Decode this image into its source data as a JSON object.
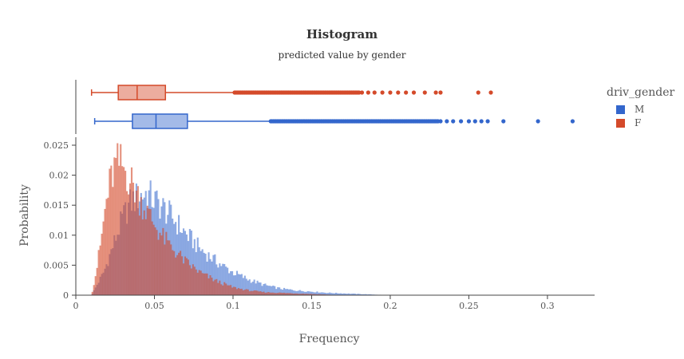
{
  "header": {
    "title": "Histogram",
    "subtitle": "predicted value by gender"
  },
  "legend": {
    "title": "driv_gender",
    "items": [
      {
        "label": "M",
        "color": "#3366cc"
      },
      {
        "label": "F",
        "color": "#d44a2a"
      }
    ]
  },
  "chart_data": [
    {
      "type": "boxplot",
      "orientation": "horizontal",
      "axis": "x",
      "series": [
        {
          "name": "F",
          "color": "#d44a2a",
          "min": 0.01,
          "q1": 0.027,
          "median": 0.039,
          "q3": 0.057,
          "upper_fence": 0.101,
          "outliers_dense_range": [
            0.101,
            0.18
          ],
          "outliers": [
            0.182,
            0.186,
            0.19,
            0.195,
            0.2,
            0.205,
            0.21,
            0.215,
            0.222,
            0.229,
            0.232,
            0.256,
            0.264
          ]
        },
        {
          "name": "M",
          "color": "#3366cc",
          "min": 0.012,
          "q1": 0.036,
          "median": 0.051,
          "q3": 0.071,
          "upper_fence": 0.124,
          "outliers_dense_range": [
            0.124,
            0.23
          ],
          "outliers": [
            0.232,
            0.236,
            0.24,
            0.245,
            0.25,
            0.254,
            0.258,
            0.262,
            0.272,
            0.294,
            0.316
          ]
        }
      ]
    },
    {
      "type": "histogram",
      "xlabel": "Frequency",
      "ylabel": "Probability",
      "xlim": [
        0,
        0.33
      ],
      "ylim": [
        0,
        0.025
      ],
      "xticks": [
        0,
        0.05,
        0.1,
        0.15,
        0.2,
        0.25,
        0.3
      ],
      "xtick_labels": [
        "0",
        "0.05",
        "0.1",
        "0.15",
        "0.2",
        "0.25",
        "0.3"
      ],
      "yticks": [
        0,
        0.005,
        0.01,
        0.015,
        0.02,
        0.025
      ],
      "ytick_labels": [
        "0",
        "0.005",
        "0.01",
        "0.015",
        "0.02",
        "0.025"
      ],
      "bin_width": 0.001,
      "series": [
        {
          "name": "M",
          "color": "#3366cc",
          "x_start": 0.01,
          "profile_x": [
            0.01,
            0.014,
            0.018,
            0.022,
            0.026,
            0.03,
            0.035,
            0.04,
            0.045,
            0.05,
            0.055,
            0.06,
            0.065,
            0.07,
            0.08,
            0.09,
            0.1,
            0.11,
            0.12,
            0.13,
            0.14,
            0.15,
            0.16,
            0.18,
            0.2
          ],
          "profile_y": [
            0.0,
            0.002,
            0.004,
            0.007,
            0.01,
            0.013,
            0.0155,
            0.0165,
            0.017,
            0.0158,
            0.0147,
            0.0133,
            0.0118,
            0.0102,
            0.0075,
            0.0055,
            0.0038,
            0.0026,
            0.0017,
            0.0011,
            0.0008,
            0.0006,
            0.0004,
            0.0002,
            0.0
          ]
        },
        {
          "name": "F",
          "color": "#d44a2a",
          "x_start": 0.01,
          "profile_x": [
            0.01,
            0.013,
            0.016,
            0.019,
            0.022,
            0.025,
            0.028,
            0.031,
            0.034,
            0.037,
            0.04,
            0.045,
            0.05,
            0.055,
            0.06,
            0.07,
            0.08,
            0.09,
            0.1,
            0.11,
            0.12,
            0.14,
            0.17
          ],
          "profile_y": [
            0.0,
            0.004,
            0.009,
            0.015,
            0.019,
            0.0215,
            0.022,
            0.021,
            0.0195,
            0.018,
            0.0163,
            0.014,
            0.0118,
            0.0098,
            0.0082,
            0.0055,
            0.0036,
            0.0023,
            0.0013,
            0.0008,
            0.0005,
            0.0003,
            0.0
          ]
        }
      ]
    }
  ]
}
